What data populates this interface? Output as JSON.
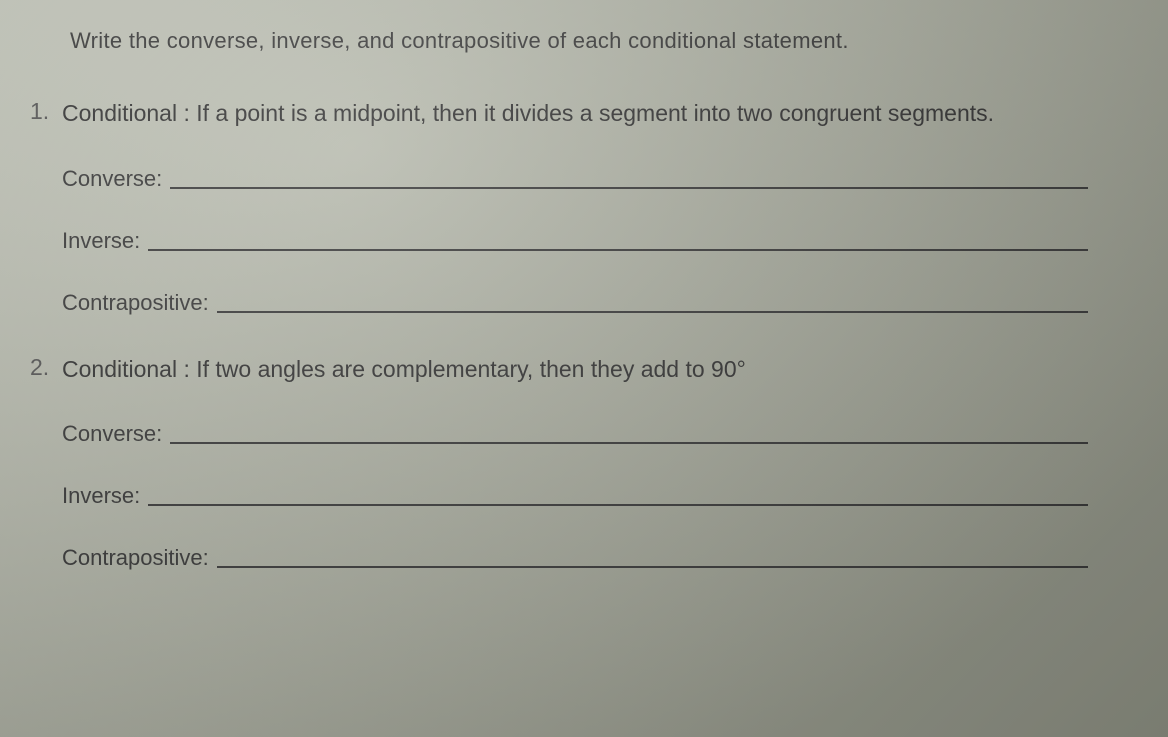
{
  "instruction": "Write the converse, inverse, and contrapositive of each conditional statement.",
  "problems": [
    {
      "number": "1.",
      "conditional_label": "Conditional :",
      "conditional_text": "If a point is a midpoint, then it divides a segment into two congruent segments.",
      "converse_label": "Converse:",
      "inverse_label": "Inverse:",
      "contrapositive_label": "Contrapositive:"
    },
    {
      "number": "2.",
      "conditional_label": "Conditional :",
      "conditional_text": "If two angles are complementary, then they add to 90°",
      "converse_label": "Converse:",
      "inverse_label": "Inverse:",
      "contrapositive_label": "Contrapositive:"
    }
  ],
  "style": {
    "background_gradient": [
      "#c5c8bc",
      "#a8ab9e",
      "#8a8d80"
    ],
    "text_color": "#2a2a2a",
    "line_color": "#3a3a3a",
    "font_family": "Arial",
    "instruction_fontsize": 22,
    "body_fontsize": 23,
    "label_fontsize": 22,
    "line_thickness": 2
  }
}
